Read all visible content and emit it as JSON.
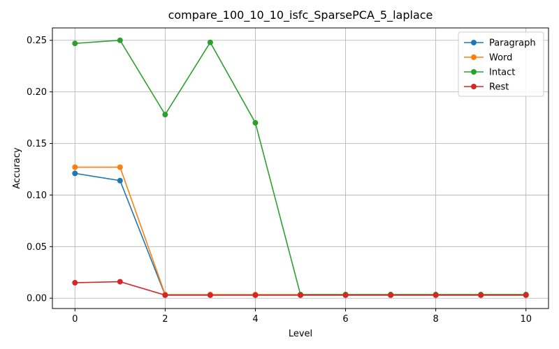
{
  "chart_data": {
    "type": "line",
    "title": "compare_100_10_10_isfc_SparsePCA_5_laplace",
    "xlabel": "Level",
    "ylabel": "Accuracy",
    "x": [
      0,
      1,
      2,
      3,
      4,
      5,
      6,
      7,
      8,
      9,
      10
    ],
    "xlim": [
      -0.5,
      10.5
    ],
    "ylim": [
      -0.01,
      0.262
    ],
    "xticks": [
      0,
      2,
      4,
      6,
      8,
      10
    ],
    "yticks": [
      0.0,
      0.05,
      0.1,
      0.15,
      0.2,
      0.25
    ],
    "ytick_labels": [
      "0.00",
      "0.05",
      "0.10",
      "0.15",
      "0.20",
      "0.25"
    ],
    "grid": true,
    "legend_position": "top-right",
    "series": [
      {
        "name": "Paragraph",
        "color": "#1f77b4",
        "values": [
          0.121,
          0.114,
          0.003,
          0.003,
          0.003,
          0.003,
          0.003,
          0.003,
          0.003,
          0.003,
          0.003
        ]
      },
      {
        "name": "Word",
        "color": "#ff7f0e",
        "values": [
          0.127,
          0.127,
          0.0035,
          0.0035,
          0.0035,
          0.0035,
          0.0035,
          0.0035,
          0.0035,
          0.0035,
          0.0035
        ]
      },
      {
        "name": "Intact",
        "color": "#2ca02c",
        "values": [
          0.247,
          0.25,
          0.178,
          0.248,
          0.17,
          0.0035,
          0.0035,
          0.0035,
          0.0035,
          0.0035,
          0.0035
        ]
      },
      {
        "name": "Rest",
        "color": "#d62728",
        "values": [
          0.015,
          0.016,
          0.003,
          0.003,
          0.003,
          0.003,
          0.003,
          0.003,
          0.003,
          0.003,
          0.003
        ]
      }
    ]
  }
}
